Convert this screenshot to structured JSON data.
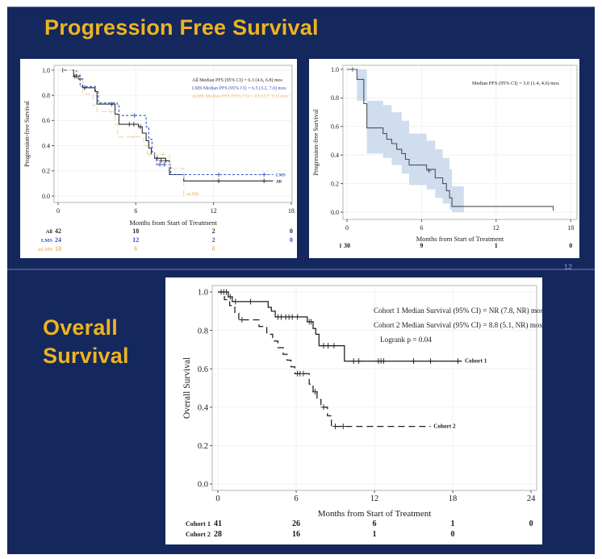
{
  "colors": {
    "slide_bg": "#14285e",
    "title_gold": "#eeb320",
    "divider": "#44558a",
    "page_number_color": "#93a0bd",
    "lms_blue": "#3353c4",
    "ulms_tan": "#e9bd72",
    "ci_band": "#cfddee"
  },
  "slide_top": {
    "title": "Progression Free Survival",
    "page_number": "12"
  },
  "slide_bottom": {
    "title": "Overall\nSurvival"
  },
  "chart_data": [
    {
      "type": "line",
      "name": "pfs-by-histology",
      "title": "",
      "xlabel": "Months from Start of Treatment",
      "ylabel": "Progression-free Survival",
      "xlim": [
        0,
        18
      ],
      "xticks": [
        0,
        6,
        12,
        18
      ],
      "ylim": [
        0,
        1
      ],
      "yticks": [
        0,
        0.2,
        0.4,
        0.6,
        0.8,
        1
      ],
      "grid": true,
      "legend_position": "top-right",
      "legend": [
        {
          "text": "All Median PFS (95% CI) = 6.3 (4.6, 6.8) mos",
          "color": "#2b2b2b"
        },
        {
          "text": "LMS Median PFS (95% CI) = 6.5 (3.2, 7.0) mos",
          "color": "#3353c4"
        },
        {
          "text": "uLMS Median PFS (95% CI) = 4.6 (2.7, 9.1) mos",
          "color": "#e9bd72"
        }
      ],
      "series": [
        {
          "name": "All",
          "color": "#2b2b2b",
          "dash": "solid",
          "end_label": "All",
          "end_at": [
            16.7,
            0.12
          ],
          "steps": [
            [
              0,
              1.0
            ],
            [
              1.2,
              0.95
            ],
            [
              1.6,
              0.93
            ],
            [
              1.9,
              0.86
            ],
            [
              2.85,
              0.83
            ],
            [
              3.0,
              0.73
            ],
            [
              4.4,
              0.65
            ],
            [
              4.7,
              0.57
            ],
            [
              6.2,
              0.55
            ],
            [
              6.5,
              0.5
            ],
            [
              6.8,
              0.44
            ],
            [
              7.0,
              0.38
            ],
            [
              7.2,
              0.33
            ],
            [
              7.45,
              0.3
            ],
            [
              8.3,
              0.28
            ],
            [
              8.6,
              0.17
            ],
            [
              9.7,
              0.12
            ],
            [
              16.6,
              0.12
            ]
          ],
          "censors": [
            [
              0.35,
              1.0
            ],
            [
              1.3,
              0.95
            ],
            [
              1.45,
              0.95
            ],
            [
              1.6,
              0.94
            ],
            [
              2.05,
              0.86
            ],
            [
              4.15,
              0.73
            ],
            [
              5.5,
              0.57
            ],
            [
              5.85,
              0.57
            ],
            [
              6.35,
              0.55
            ],
            [
              7.65,
              0.3
            ],
            [
              7.95,
              0.28
            ],
            [
              8.3,
              0.28
            ],
            [
              12.4,
              0.12
            ],
            [
              15.9,
              0.12
            ]
          ]
        },
        {
          "name": "LMS",
          "color": "#3353c4",
          "dash": "dash",
          "end_label": "LMS",
          "end_at": [
            16.7,
            0.17
          ],
          "steps": [
            [
              0,
              1.0
            ],
            [
              1.4,
              0.96
            ],
            [
              1.7,
              0.87
            ],
            [
              2.9,
              0.83
            ],
            [
              3.1,
              0.74
            ],
            [
              4.55,
              0.73
            ],
            [
              4.7,
              0.64
            ],
            [
              6.5,
              0.64
            ],
            [
              6.8,
              0.55
            ],
            [
              7.0,
              0.45
            ],
            [
              7.25,
              0.35
            ],
            [
              7.45,
              0.3
            ],
            [
              7.6,
              0.25
            ],
            [
              8.5,
              0.25
            ],
            [
              8.7,
              0.17
            ],
            [
              16.6,
              0.17
            ]
          ],
          "censors": [
            [
              5.9,
              0.64
            ],
            [
              7.85,
              0.25
            ],
            [
              8.2,
              0.25
            ],
            [
              12.4,
              0.17
            ],
            [
              15.9,
              0.17
            ]
          ]
        },
        {
          "name": "uLMS",
          "color": "#eed9ac",
          "label_color": "#e9bd72",
          "dash": "longdash",
          "end_label": "uLMS",
          "end_at": [
            9.8,
            0.02
          ],
          "steps": [
            [
              0,
              1.0
            ],
            [
              1.5,
              0.94
            ],
            [
              1.9,
              0.81
            ],
            [
              2.7,
              0.72
            ],
            [
              3.0,
              0.67
            ],
            [
              4.4,
              0.57
            ],
            [
              4.6,
              0.47
            ],
            [
              6.35,
              0.47
            ],
            [
              6.6,
              0.4
            ],
            [
              6.9,
              0.33
            ],
            [
              8.4,
              0.33
            ],
            [
              8.6,
              0.22
            ],
            [
              9.6,
              0.22
            ],
            [
              9.7,
              0.0
            ]
          ],
          "censors": [
            [
              4.05,
              0.67
            ],
            [
              5.8,
              0.47
            ],
            [
              7.1,
              0.33
            ],
            [
              7.5,
              0.33
            ],
            [
              8.1,
              0.33
            ]
          ]
        }
      ],
      "at_risk": {
        "columns": [
          0,
          6,
          12,
          18
        ],
        "rows": [
          {
            "label": "All",
            "color": "#2b2b2b",
            "values": [
              "42",
              "18",
              "2",
              "0"
            ]
          },
          {
            "label": "LMS",
            "color": "#3353c4",
            "values": [
              "24",
              "12",
              "2",
              "0"
            ]
          },
          {
            "label": "uLMS",
            "color": "#e9bd72",
            "values": [
              "18",
              "6",
              "0"
            ]
          }
        ]
      }
    },
    {
      "type": "line",
      "name": "pfs-overall",
      "title": "",
      "xlabel": "Months from Start of Treatment",
      "ylabel": "Progression-free Survival",
      "xlim": [
        0,
        18
      ],
      "xticks": [
        0,
        6,
        12,
        18
      ],
      "ylim": [
        0,
        1
      ],
      "yticks": [
        0,
        0.2,
        0.4,
        0.6,
        0.8,
        1
      ],
      "grid": true,
      "legend_position": "top-right",
      "legend": [
        {
          "text": "Median PFS (95% CI) = 3.0 (1.4, 4.6) mos",
          "color": "#1a1a1a"
        }
      ],
      "band": {
        "color": "#cfddee",
        "upper": [
          [
            0,
            1.0
          ],
          [
            1.35,
            1.0
          ],
          [
            1.6,
            0.78
          ],
          [
            2.9,
            0.75
          ],
          [
            3.6,
            0.7
          ],
          [
            4.4,
            0.64
          ],
          [
            5.0,
            0.55
          ],
          [
            6.4,
            0.5
          ],
          [
            7.1,
            0.44
          ],
          [
            7.7,
            0.38
          ],
          [
            8.25,
            0.3
          ],
          [
            8.45,
            0.18
          ],
          [
            9.4,
            0.18
          ]
        ],
        "lower": [
          [
            0,
            1.0
          ],
          [
            0.8,
            0.78
          ],
          [
            1.6,
            0.41
          ],
          [
            2.9,
            0.38
          ],
          [
            3.6,
            0.33
          ],
          [
            4.4,
            0.27
          ],
          [
            5.0,
            0.19
          ],
          [
            6.4,
            0.16
          ],
          [
            7.1,
            0.1
          ],
          [
            7.7,
            0.06
          ],
          [
            8.25,
            0.02
          ],
          [
            8.45,
            0.0
          ],
          [
            9.4,
            0.0
          ]
        ]
      },
      "series": [
        {
          "name": "All",
          "color": "#4b505e",
          "dash": "solid",
          "steps": [
            [
              0,
              1.0
            ],
            [
              0.8,
              0.93
            ],
            [
              1.35,
              0.76
            ],
            [
              1.6,
              0.59
            ],
            [
              2.9,
              0.55
            ],
            [
              3.2,
              0.51
            ],
            [
              3.6,
              0.48
            ],
            [
              4.0,
              0.44
            ],
            [
              4.4,
              0.41
            ],
            [
              4.7,
              0.37
            ],
            [
              5.0,
              0.33
            ],
            [
              6.4,
              0.3
            ],
            [
              7.1,
              0.24
            ],
            [
              7.7,
              0.2
            ],
            [
              8.0,
              0.15
            ],
            [
              8.25,
              0.1
            ],
            [
              8.45,
              0.04
            ],
            [
              16.6,
              0.04
            ],
            [
              16.6,
              0.01
            ]
          ],
          "censors": [
            [
              0.45,
              1.0
            ],
            [
              6.6,
              0.29
            ]
          ]
        }
      ],
      "at_risk": {
        "columns": [
          0,
          6,
          12,
          18
        ],
        "rows": [
          {
            "label": "l",
            "color": "#1a1a1a",
            "values": [
              "30",
              "9",
              "1",
              "0"
            ]
          }
        ]
      }
    },
    {
      "type": "line",
      "name": "overall-survival",
      "title": "",
      "xlabel": "Months from Start of Treatment",
      "ylabel": "Overall Survival",
      "xlim": [
        0,
        24
      ],
      "xticks": [
        0,
        6,
        12,
        18,
        24
      ],
      "ylim": [
        0,
        1
      ],
      "yticks": [
        0,
        0.2,
        0.4,
        0.6,
        0.8,
        1
      ],
      "grid": true,
      "legend_position": "top-right",
      "legend": [
        {
          "text": "Cohort 1 Median Survival (95% CI) = NR (7.8, NR) mos",
          "color": "#1a1a1a"
        },
        {
          "text": "Cohort 2 Median Survival (95% CI) = 8.8 (5.1, NR) mos",
          "color": "#1a1a1a"
        },
        {
          "text": "Logrank p = 0.04",
          "color": "#1a1a1a",
          "indent": 8
        }
      ],
      "series": [
        {
          "name": "Cohort 1",
          "color": "#1c1c1c",
          "dash": "solid",
          "end_label": "Cohort 1",
          "end_at": [
            18.8,
            0.64
          ],
          "steps": [
            [
              0,
              1.0
            ],
            [
              0.8,
              0.975
            ],
            [
              1.1,
              0.95
            ],
            [
              3.6,
              0.95
            ],
            [
              3.85,
              0.92
            ],
            [
              4.1,
              0.9
            ],
            [
              4.4,
              0.87
            ],
            [
              6.6,
              0.87
            ],
            [
              6.85,
              0.845
            ],
            [
              7.3,
              0.81
            ],
            [
              7.5,
              0.78
            ],
            [
              7.75,
              0.72
            ],
            [
              9.4,
              0.72
            ],
            [
              9.7,
              0.64
            ],
            [
              18.7,
              0.64
            ]
          ],
          "censors": [
            [
              0.25,
              1.0
            ],
            [
              0.45,
              1.0
            ],
            [
              0.65,
              1.0
            ],
            [
              0.95,
              0.975
            ],
            [
              1.35,
              0.95
            ],
            [
              2.5,
              0.95
            ],
            [
              4.6,
              0.87
            ],
            [
              4.85,
              0.87
            ],
            [
              5.2,
              0.87
            ],
            [
              5.45,
              0.87
            ],
            [
              5.7,
              0.87
            ],
            [
              6.1,
              0.87
            ],
            [
              7.0,
              0.845
            ],
            [
              7.15,
              0.845
            ],
            [
              8.1,
              0.72
            ],
            [
              8.45,
              0.72
            ],
            [
              8.9,
              0.72
            ],
            [
              10.4,
              0.64
            ],
            [
              10.8,
              0.64
            ],
            [
              12.3,
              0.64
            ],
            [
              12.5,
              0.64
            ],
            [
              12.7,
              0.64
            ],
            [
              15.0,
              0.64
            ],
            [
              16.3,
              0.64
            ],
            [
              18.4,
              0.64
            ]
          ]
        },
        {
          "name": "Cohort 2",
          "color": "#1c1c1c",
          "dash": "bigdash",
          "end_label": "Cohort 2",
          "end_at": [
            16.4,
            0.3
          ],
          "steps": [
            [
              0,
              1.0
            ],
            [
              0.5,
              0.96
            ],
            [
              0.9,
              0.93
            ],
            [
              1.3,
              0.89
            ],
            [
              1.6,
              0.855
            ],
            [
              2.95,
              0.855
            ],
            [
              3.15,
              0.82
            ],
            [
              3.75,
              0.78
            ],
            [
              4.2,
              0.745
            ],
            [
              4.6,
              0.71
            ],
            [
              5.0,
              0.675
            ],
            [
              5.3,
              0.645
            ],
            [
              5.6,
              0.61
            ],
            [
              5.9,
              0.575
            ],
            [
              6.8,
              0.575
            ],
            [
              7.0,
              0.52
            ],
            [
              7.3,
              0.48
            ],
            [
              7.6,
              0.44
            ],
            [
              7.9,
              0.4
            ],
            [
              8.4,
              0.355
            ],
            [
              8.7,
              0.3
            ],
            [
              16.3,
              0.3
            ]
          ],
          "censors": [
            [
              1.85,
              0.855
            ],
            [
              6.1,
              0.575
            ],
            [
              6.3,
              0.575
            ],
            [
              6.55,
              0.575
            ],
            [
              7.45,
              0.48
            ],
            [
              8.1,
              0.4
            ],
            [
              9.0,
              0.3
            ],
            [
              9.6,
              0.3
            ]
          ]
        }
      ],
      "at_risk": {
        "columns": [
          0,
          6,
          12,
          18,
          24
        ],
        "rows": [
          {
            "label": "Cohort 1",
            "color": "#1a1a1a",
            "values": [
              "41",
              "26",
              "6",
              "1",
              "0"
            ]
          },
          {
            "label": "Cohort 2",
            "color": "#1a1a1a",
            "values": [
              "28",
              "16",
              "1",
              "0"
            ]
          }
        ]
      }
    }
  ]
}
